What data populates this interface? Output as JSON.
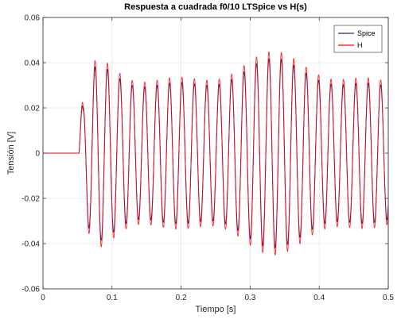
{
  "chart_data": {
    "type": "line",
    "title": "Respuesta a cuadrada f0/10 LTSpice vs H(s)",
    "xlabel": "Tiempo [s]",
    "ylabel": "Tensión [V]",
    "xlim": [
      0,
      0.5
    ],
    "ylim": [
      -0.06,
      0.06
    ],
    "x_ticks": [
      0,
      0.1,
      0.2,
      0.3,
      0.4,
      0.5
    ],
    "x_tick_labels": [
      "0",
      "0.1",
      "0.2",
      "0.3",
      "0.4",
      "0.5"
    ],
    "y_ticks": [
      -0.06,
      -0.04,
      -0.02,
      0,
      0.02,
      0.04,
      0.06
    ],
    "y_tick_labels": [
      "-0.06",
      "-0.04",
      "-0.02",
      "0",
      "0.02",
      "0.04",
      "0.06"
    ],
    "grid": true,
    "legend_position": "top-right",
    "series": [
      {
        "name": "Spice",
        "color": "#2b2b80",
        "description_points": {
          "x": [
            0,
            0.052,
            0.055,
            0.057,
            0.06,
            0.063,
            0.066,
            0.07,
            0.075,
            0.08,
            0.085,
            0.09,
            0.1,
            0.15,
            0.2,
            0.3,
            0.4,
            0.5
          ],
          "y": [
            0,
            0,
            0.006,
            0.006,
            -0.02,
            0.02,
            -0.03,
            0.025,
            -0.035,
            0.038,
            -0.04,
            0.042,
            -0.04,
            0.038,
            -0.038,
            0.036,
            -0.036,
            0.015
          ]
        }
      },
      {
        "name": "H",
        "color": "#ff0000",
        "description_points": {
          "x": [
            0,
            0.052,
            0.055,
            0.057,
            0.06,
            0.063,
            0.066,
            0.07,
            0.075,
            0.08,
            0.085,
            0.09,
            0.1,
            0.15,
            0.2,
            0.3,
            0.4,
            0.5
          ],
          "y": [
            0,
            0,
            0.008,
            0.008,
            -0.022,
            0.022,
            -0.033,
            0.03,
            -0.038,
            0.042,
            -0.045,
            0.046,
            -0.044,
            0.04,
            -0.04,
            0.038,
            -0.038,
            0.016
          ]
        }
      }
    ]
  }
}
